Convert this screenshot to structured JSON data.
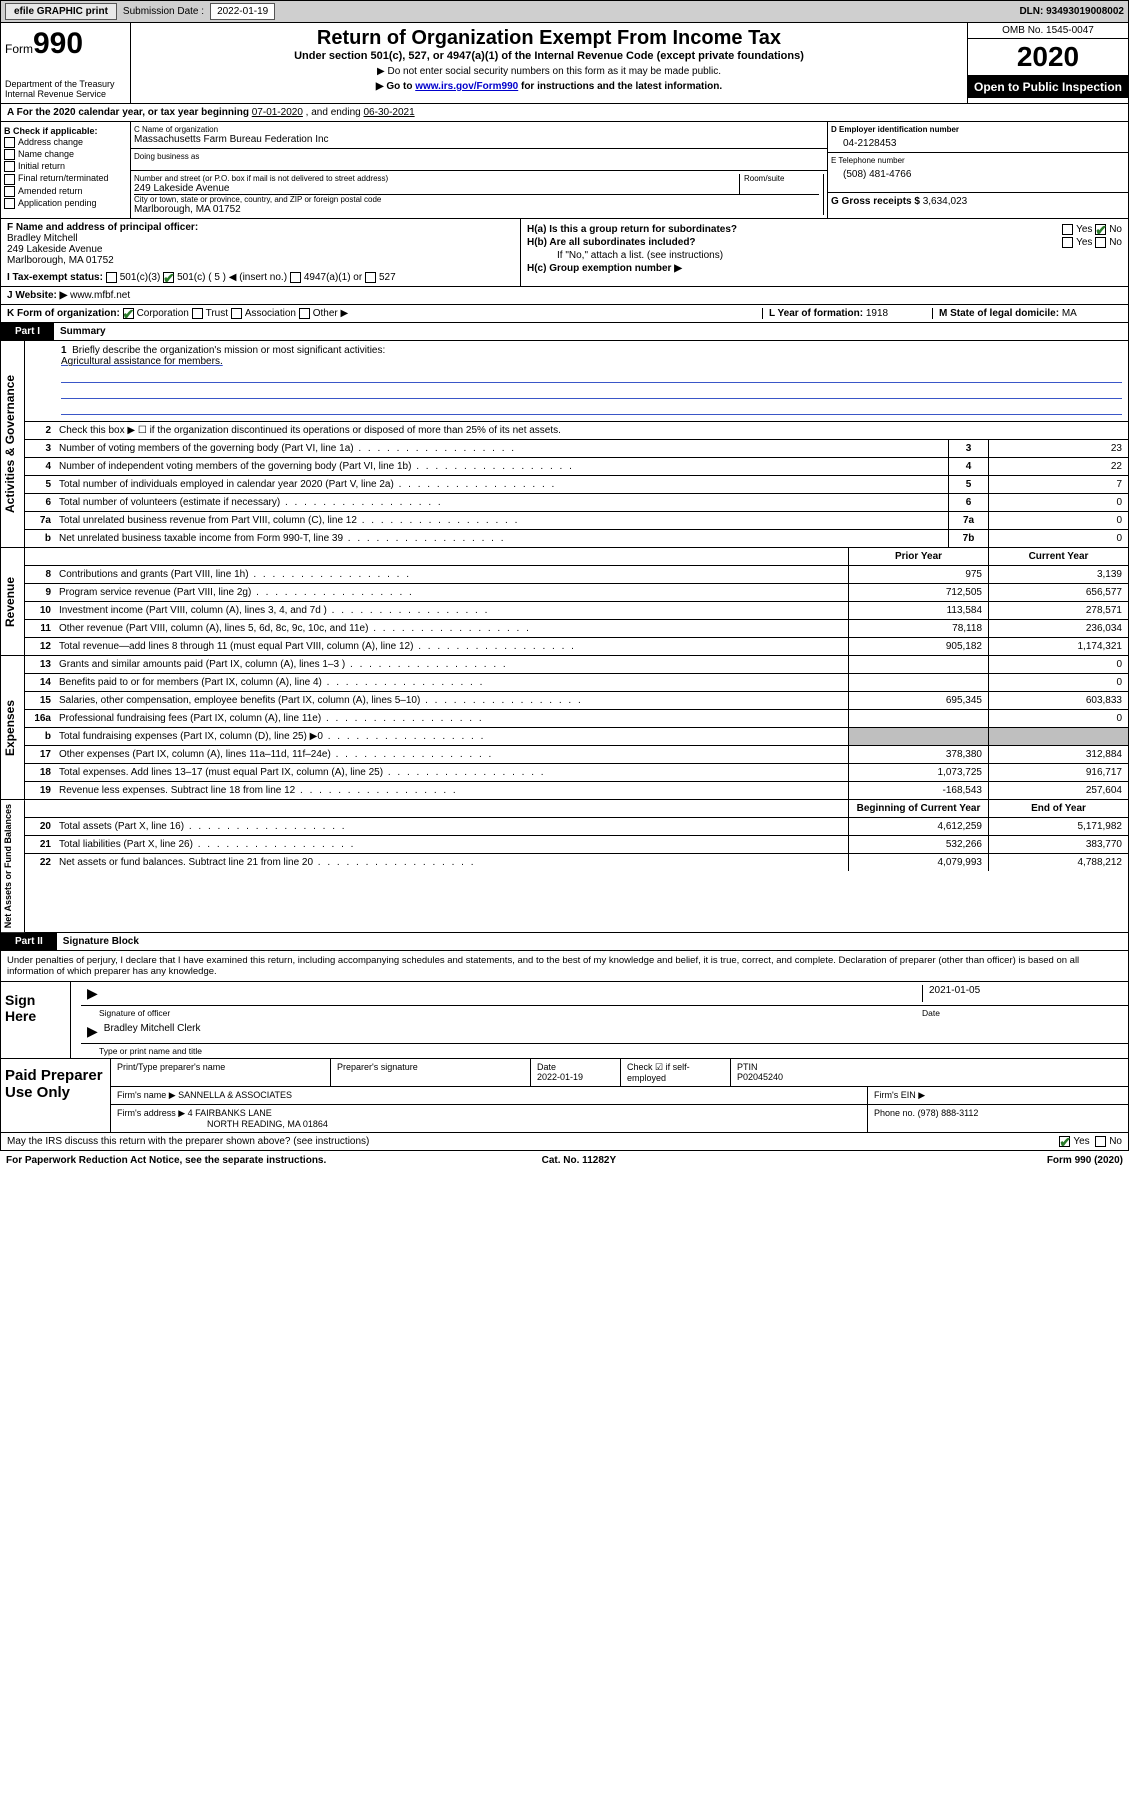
{
  "topbar": {
    "efile": "efile GRAPHIC print",
    "submission_label": "Submission Date :",
    "submission_date": "2022-01-19",
    "dln_label": "DLN:",
    "dln": "93493019008002"
  },
  "header": {
    "form_word": "Form",
    "form_num": "990",
    "dept": "Department of the Treasury\nInternal Revenue Service",
    "title": "Return of Organization Exempt From Income Tax",
    "sub": "Under section 501(c), 527, or 4947(a)(1) of the Internal Revenue Code (except private foundations)",
    "note1": "▶ Do not enter social security numbers on this form as it may be made public.",
    "note2_pre": "▶ Go to ",
    "note2_link": "www.irs.gov/Form990",
    "note2_post": " for instructions and the latest information.",
    "omb": "OMB No. 1545-0047",
    "year": "2020",
    "inspect": "Open to Public Inspection"
  },
  "line_a": {
    "text": "A For the 2020 calendar year, or tax year beginning ",
    "begin": "07-01-2020",
    "mid": " , and ending ",
    "end": "06-30-2021"
  },
  "boxB": {
    "hdr": "B Check if applicable:",
    "opts": [
      "Address change",
      "Name change",
      "Initial return",
      "Final return/terminated",
      "Amended return",
      "Application pending"
    ]
  },
  "boxC": {
    "label": "C Name of organization",
    "name": "Massachusetts Farm Bureau Federation Inc",
    "dba_label": "Doing business as",
    "street_label": "Number and street (or P.O. box if mail is not delivered to street address)",
    "room_label": "Room/suite",
    "street": "249 Lakeside Avenue",
    "city_label": "City or town, state or province, country, and ZIP or foreign postal code",
    "city": "Marlborough, MA  01752"
  },
  "boxD": {
    "label": "D Employer identification number",
    "val": "04-2128453"
  },
  "boxE": {
    "label": "E Telephone number",
    "val": "(508) 481-4766"
  },
  "boxG": {
    "label": "G Gross receipts $",
    "val": "3,634,023"
  },
  "boxF": {
    "label": "F Name and address of principal officer:",
    "lines": [
      "Bradley Mitchell",
      "249 Lakeside Avenue",
      "Marlborough, MA  01752"
    ]
  },
  "boxH": {
    "a_label": "H(a)  Is this a group return for subordinates?",
    "a_yes": "Yes",
    "a_no": "No",
    "b_label": "H(b)  Are all subordinates included?",
    "b_note": "If \"No,\" attach a list. (see instructions)",
    "c_label": "H(c)  Group exemption number ▶"
  },
  "boxI": {
    "label": "I  Tax-exempt status:",
    "o1": "501(c)(3)",
    "o2": "501(c) ( 5 ) ◀ (insert no.)",
    "o3": "4947(a)(1) or",
    "o4": "527"
  },
  "boxJ": {
    "label": "J  Website: ▶",
    "val": "www.mfbf.net"
  },
  "boxK": {
    "label": "K Form of organization:",
    "opts": [
      "Corporation",
      "Trust",
      "Association",
      "Other ▶"
    ]
  },
  "boxL": {
    "label": "L Year of formation:",
    "val": "1918"
  },
  "boxM": {
    "label": "M State of legal domicile:",
    "val": "MA"
  },
  "partI": {
    "num": "Part I",
    "title": "Summary"
  },
  "summary": {
    "q1": "Briefly describe the organization's mission or most significant activities:",
    "mission": "Agricultural assistance for members.",
    "q2": "Check this box ▶ ☐  if the organization discontinued its operations or disposed of more than 25% of its net assets.",
    "rows_single": [
      {
        "n": "3",
        "d": "Number of voting members of the governing body (Part VI, line 1a)",
        "box": "3",
        "v": "23"
      },
      {
        "n": "4",
        "d": "Number of independent voting members of the governing body (Part VI, line 1b)",
        "box": "4",
        "v": "22"
      },
      {
        "n": "5",
        "d": "Total number of individuals employed in calendar year 2020 (Part V, line 2a)",
        "box": "5",
        "v": "7"
      },
      {
        "n": "6",
        "d": "Total number of volunteers (estimate if necessary)",
        "box": "6",
        "v": "0"
      },
      {
        "n": "7a",
        "d": "Total unrelated business revenue from Part VIII, column (C), line 12",
        "box": "7a",
        "v": "0"
      },
      {
        "n": "b",
        "d": "Net unrelated business taxable income from Form 990-T, line 39",
        "box": "7b",
        "v": "0"
      }
    ],
    "hdr_prior": "Prior Year",
    "hdr_current": "Current Year",
    "revenue": [
      {
        "n": "8",
        "d": "Contributions and grants (Part VIII, line 1h)",
        "p": "975",
        "c": "3,139"
      },
      {
        "n": "9",
        "d": "Program service revenue (Part VIII, line 2g)",
        "p": "712,505",
        "c": "656,577"
      },
      {
        "n": "10",
        "d": "Investment income (Part VIII, column (A), lines 3, 4, and 7d )",
        "p": "113,584",
        "c": "278,571"
      },
      {
        "n": "11",
        "d": "Other revenue (Part VIII, column (A), lines 5, 6d, 8c, 9c, 10c, and 11e)",
        "p": "78,118",
        "c": "236,034"
      },
      {
        "n": "12",
        "d": "Total revenue—add lines 8 through 11 (must equal Part VIII, column (A), line 12)",
        "p": "905,182",
        "c": "1,174,321"
      }
    ],
    "expenses": [
      {
        "n": "13",
        "d": "Grants and similar amounts paid (Part IX, column (A), lines 1–3 )",
        "p": "",
        "c": "0"
      },
      {
        "n": "14",
        "d": "Benefits paid to or for members (Part IX, column (A), line 4)",
        "p": "",
        "c": "0"
      },
      {
        "n": "15",
        "d": "Salaries, other compensation, employee benefits (Part IX, column (A), lines 5–10)",
        "p": "695,345",
        "c": "603,833"
      },
      {
        "n": "16a",
        "d": "Professional fundraising fees (Part IX, column (A), line 11e)",
        "p": "",
        "c": "0"
      },
      {
        "n": "b",
        "d": "Total fundraising expenses (Part IX, column (D), line 25) ▶0",
        "p": "GRAY",
        "c": "GRAY"
      },
      {
        "n": "17",
        "d": "Other expenses (Part IX, column (A), lines 11a–11d, 11f–24e)",
        "p": "378,380",
        "c": "312,884"
      },
      {
        "n": "18",
        "d": "Total expenses. Add lines 13–17 (must equal Part IX, column (A), line 25)",
        "p": "1,073,725",
        "c": "916,717"
      },
      {
        "n": "19",
        "d": "Revenue less expenses. Subtract line 18 from line 12",
        "p": "-168,543",
        "c": "257,604"
      }
    ],
    "hdr_begin": "Beginning of Current Year",
    "hdr_end": "End of Year",
    "netassets": [
      {
        "n": "20",
        "d": "Total assets (Part X, line 16)",
        "p": "4,612,259",
        "c": "5,171,982"
      },
      {
        "n": "21",
        "d": "Total liabilities (Part X, line 26)",
        "p": "532,266",
        "c": "383,770"
      },
      {
        "n": "22",
        "d": "Net assets or fund balances. Subtract line 21 from line 20",
        "p": "4,079,993",
        "c": "4,788,212"
      }
    ],
    "tabs": {
      "ag": "Activities & Governance",
      "rev": "Revenue",
      "exp": "Expenses",
      "na": "Net Assets or Fund Balances"
    }
  },
  "partII": {
    "num": "Part II",
    "title": "Signature Block"
  },
  "perjury": "Under penalties of perjury, I declare that I have examined this return, including accompanying schedules and statements, and to the best of my knowledge and belief, it is true, correct, and complete. Declaration of preparer (other than officer) is based on all information of which preparer has any knowledge.",
  "sign": {
    "left": "Sign Here",
    "sig_label": "Signature of officer",
    "date_label": "Date",
    "date": "2021-01-05",
    "name": "Bradley Mitchell Clerk",
    "name_label": "Type or print name and title"
  },
  "prep": {
    "left": "Paid Preparer Use Only",
    "h1": "Print/Type preparer's name",
    "h2": "Preparer's signature",
    "h3_label": "Date",
    "h3_val": "2022-01-19",
    "h4_label": "Check ☑ if self-employed",
    "h5_label": "PTIN",
    "h5_val": "P02045240",
    "firm_label": "Firm's name    ▶",
    "firm_name": "SANNELLA & ASSOCIATES",
    "ein_label": "Firm's EIN ▶",
    "addr_label": "Firm's address ▶",
    "addr1": "4 FAIRBANKS LANE",
    "addr2": "NORTH READING, MA  01864",
    "phone_label": "Phone no.",
    "phone": "(978) 888-3112"
  },
  "footer": {
    "discuss": "May the IRS discuss this return with the preparer shown above? (see instructions)",
    "yes": "Yes",
    "no": "No",
    "paperwork": "For Paperwork Reduction Act Notice, see the separate instructions.",
    "cat": "Cat. No. 11282Y",
    "form": "Form 990 (2020)"
  }
}
